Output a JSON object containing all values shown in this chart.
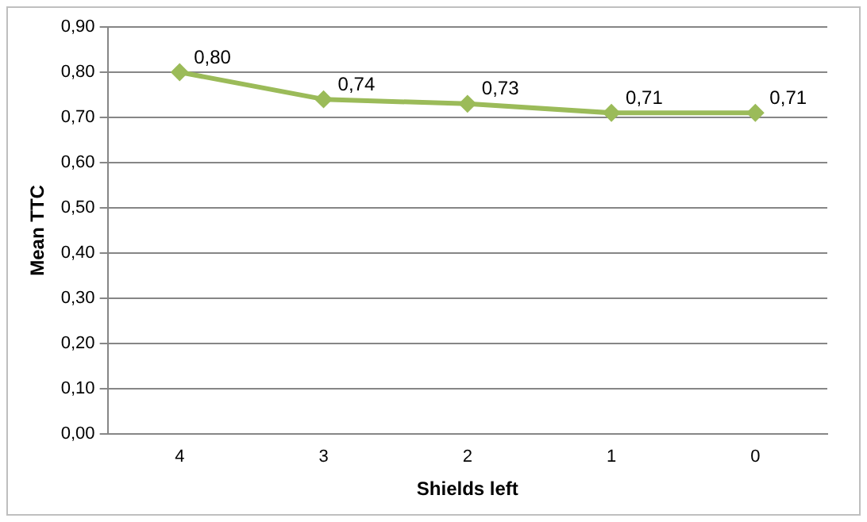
{
  "chart_data": {
    "type": "line",
    "xlabel": "Shields left",
    "ylabel": "Mean TTC",
    "categories": [
      "4",
      "3",
      "2",
      "1",
      "0"
    ],
    "series": [
      {
        "color": "#9bbb59",
        "values": [
          0.8,
          0.74,
          0.73,
          0.71,
          0.71
        ],
        "value_labels": [
          "0,80",
          "0,74",
          "0,73",
          "0,71",
          "0,71"
        ]
      }
    ],
    "ylim": [
      0,
      0.9
    ],
    "yticks": [
      {
        "value": 0,
        "label": "0,00"
      },
      {
        "value": 0.1,
        "label": "0,10"
      },
      {
        "value": 0.2,
        "label": "0,20"
      },
      {
        "value": 0.3,
        "label": "0,30"
      },
      {
        "value": 0.4,
        "label": "0,40"
      },
      {
        "value": 0.5,
        "label": "0,50"
      },
      {
        "value": 0.6,
        "label": "0,60"
      },
      {
        "value": 0.7,
        "label": "0,70"
      },
      {
        "value": 0.8,
        "label": "0,80"
      },
      {
        "value": 0.9,
        "label": "0,90"
      }
    ],
    "grid": "y",
    "legend": false,
    "marker": "diamond",
    "line_style": "solid"
  }
}
